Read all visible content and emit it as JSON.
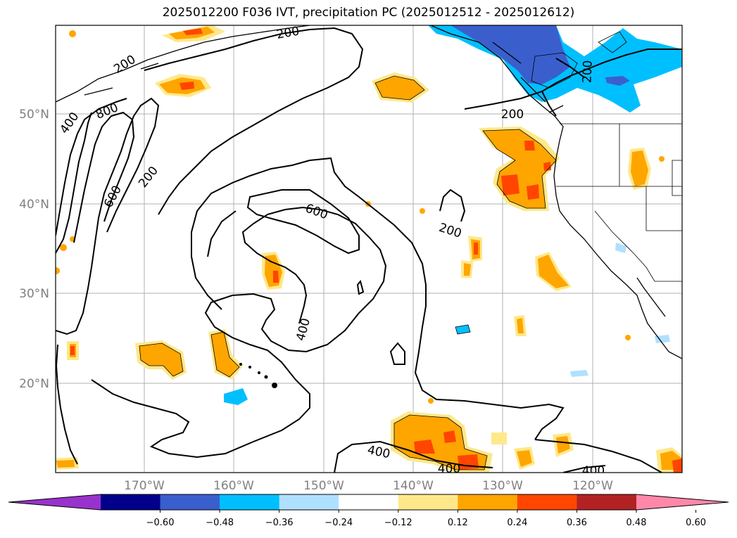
{
  "title": "2025012200 F036 IVT, precipitation PC (2025012512 - 2025012612)",
  "lat_labels": [
    "50°N",
    "40°N",
    "30°N",
    "20°N"
  ],
  "lon_labels": [
    "170°W",
    "160°W",
    "150°W",
    "140°W",
    "130°W",
    "120°W"
  ],
  "colorbar": {
    "colors": [
      "#9932cc",
      "#00008b",
      "#3a5fcd",
      "#00bfff",
      "#b0e0ff",
      "#ffffff",
      "#ffe88a",
      "#ffa500",
      "#ff4500",
      "#b22222",
      "#ff88aa"
    ],
    "ticks": [
      "−0.60",
      "−0.48",
      "−0.36",
      "−0.24",
      "−0.12",
      "0.12",
      "0.24",
      "0.36",
      "0.48",
      "0.60"
    ]
  },
  "contour_labels": [
    "200",
    "200",
    "400",
    "800",
    "200",
    "600",
    "600",
    "200",
    "400",
    "200",
    "200",
    "400",
    "400",
    "400"
  ]
}
